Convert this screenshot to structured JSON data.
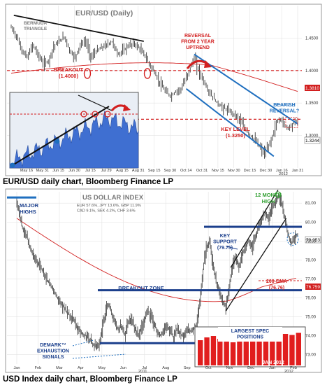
{
  "captions": {
    "top": "EUR/USD daily chart, Bloomberg Finance LP",
    "bottom": "USD Index daily chart, Bloomberg Finance LP"
  },
  "colors": {
    "red": "#d21f1f",
    "blue": "#1f6fbf",
    "green": "#2f9e2f",
    "navy": "#1b3f8c",
    "bar": "#3a3a3a",
    "grid": "#e3e3e3",
    "axis": "#555555"
  },
  "chart_data": [
    {
      "type": "candlestick",
      "title": "EUR/USD (Daily)",
      "ylim": [
        1.25,
        1.5
      ],
      "y_ticks": [
        "1.4500",
        "1.4000",
        "1.3500",
        "1.3000"
      ],
      "x_ticks": [
        "May 16",
        "May 31",
        "Jun 15",
        "Jun 30",
        "Jul 15",
        "Jul 29",
        "Aug 15",
        "Aug 31",
        "Sep 15",
        "Sep 30",
        "Oct 14",
        "Oct 31",
        "Nov 15",
        "Nov 30",
        "Dec 15",
        "Dec 30",
        "Jan 16",
        "Jan 31"
      ],
      "year_label": "2012",
      "levels": [
        {
          "name": "breakout",
          "value": 1.4
        },
        {
          "name": "key-level",
          "value": 1.325
        }
      ],
      "last_price_tags": [
        "1.3244",
        "1.3810"
      ],
      "annotations": [
        {
          "key": "bermuda",
          "text": "BERMUDA TRIANGLE"
        },
        {
          "key": "reversal",
          "text": "REVERSAL FROM 2 YEAR UPTREND"
        },
        {
          "key": "breakout",
          "text": "BREAKOUT (1.4000)"
        },
        {
          "key": "bearish",
          "text": "BEARISH REVERSAL?"
        },
        {
          "key": "keylevel",
          "text": "KEY LEVEL (1.3250)"
        }
      ],
      "close_path": [
        [
          0,
          1.466
        ],
        [
          4,
          1.452
        ],
        [
          8,
          1.43
        ],
        [
          12,
          1.42
        ],
        [
          16,
          1.44
        ],
        [
          20,
          1.425
        ],
        [
          24,
          1.41
        ],
        [
          28,
          1.415
        ],
        [
          32,
          1.438
        ],
        [
          36,
          1.445
        ],
        [
          40,
          1.452
        ],
        [
          44,
          1.43
        ],
        [
          48,
          1.42
        ],
        [
          52,
          1.44
        ],
        [
          56,
          1.445
        ],
        [
          60,
          1.42
        ],
        [
          64,
          1.43
        ],
        [
          68,
          1.435
        ],
        [
          72,
          1.44
        ],
        [
          76,
          1.445
        ],
        [
          80,
          1.425
        ],
        [
          84,
          1.43
        ],
        [
          88,
          1.438
        ],
        [
          92,
          1.442
        ],
        [
          96,
          1.435
        ],
        [
          100,
          1.425
        ],
        [
          104,
          1.41
        ],
        [
          108,
          1.396
        ],
        [
          112,
          1.38
        ],
        [
          116,
          1.368
        ],
        [
          120,
          1.36
        ],
        [
          124,
          1.368
        ],
        [
          128,
          1.372
        ],
        [
          132,
          1.39
        ],
        [
          136,
          1.41
        ],
        [
          138,
          1.42
        ],
        [
          140,
          1.405
        ],
        [
          144,
          1.388
        ],
        [
          148,
          1.37
        ],
        [
          152,
          1.358
        ],
        [
          156,
          1.348
        ],
        [
          160,
          1.342
        ],
        [
          164,
          1.338
        ],
        [
          168,
          1.333
        ],
        [
          172,
          1.325
        ],
        [
          176,
          1.31
        ],
        [
          180,
          1.3
        ],
        [
          184,
          1.292
        ],
        [
          188,
          1.28
        ],
        [
          191,
          1.272
        ],
        [
          194,
          1.284
        ],
        [
          197,
          1.3
        ],
        [
          200,
          1.32
        ],
        [
          203,
          1.326
        ],
        [
          206,
          1.315
        ],
        [
          209,
          1.312
        ],
        [
          212,
          1.318
        ],
        [
          216,
          1.324
        ]
      ],
      "inset": {
        "description_free": true
      }
    },
    {
      "type": "candlestick",
      "title": "US DOLLAR INDEX",
      "ylim": [
        72.5,
        81.6
      ],
      "y_ticks": [
        "81.00",
        "80.00",
        "79.00",
        "78.00",
        "77.00",
        "76.00",
        "75.00",
        "74.00",
        "73.00"
      ],
      "x_ticks": [
        "Jan",
        "Feb",
        "Mar",
        "Apr",
        "May",
        "Jun",
        "Jul",
        "Aug",
        "Sep",
        "Oct",
        "Nov",
        "Dec",
        "Jan",
        "Feb"
      ],
      "year_labels": [
        "2011",
        "2012"
      ],
      "weights_lines": [
        "EUR 57.6%, JPY 13.6%, GBP 11.9%",
        "CAD 9.1%, SEK 4.2%, CHF 3.6%"
      ],
      "last_price_tags": [
        "79.353",
        "76.759"
      ],
      "levels": [
        {
          "name": "key-support",
          "value": 79.75
        },
        {
          "name": "breakout-zone",
          "value": 76.4
        },
        {
          "name": "demark-level",
          "value": 73.6
        },
        {
          "name": "major-highs",
          "value": 81.3
        }
      ],
      "moving_average": {
        "name": "200-DMA",
        "value": 76.76
      },
      "annotations": [
        {
          "key": "majorhighs",
          "text": "MAJOR HIGHS"
        },
        {
          "key": "keysupport",
          "text": "KEY SUPPORT (79.75)"
        },
        {
          "key": "twelvemonth",
          "text": "12 MONTH HIGH"
        },
        {
          "key": "dma",
          "text": "200-DMA (76.76)"
        },
        {
          "key": "breakoutzone",
          "text": "BREAKOUT ZONE"
        },
        {
          "key": "demark",
          "text": "DEMARK™ EXHAUSTION SIGNALS"
        },
        {
          "key": "spec",
          "text": "LARGEST SPEC POSITIONS"
        }
      ],
      "close_path": [
        [
          0,
          81.1
        ],
        [
          6,
          79.8
        ],
        [
          12,
          79.2
        ],
        [
          18,
          78.4
        ],
        [
          24,
          77.9
        ],
        [
          30,
          77.5
        ],
        [
          36,
          77.0
        ],
        [
          42,
          76.6
        ],
        [
          48,
          76.1
        ],
        [
          54,
          75.7
        ],
        [
          60,
          75.3
        ],
        [
          66,
          75.0
        ],
        [
          72,
          74.6
        ],
        [
          78,
          74.2
        ],
        [
          84,
          74.0
        ],
        [
          90,
          73.7
        ],
        [
          96,
          73.4
        ],
        [
          100,
          73.5
        ],
        [
          104,
          74.3
        ],
        [
          108,
          75.2
        ],
        [
          112,
          75.7
        ],
        [
          116,
          75.2
        ],
        [
          120,
          74.6
        ],
        [
          124,
          74.3
        ],
        [
          128,
          74.5
        ],
        [
          132,
          74.0
        ],
        [
          136,
          74.7
        ],
        [
          140,
          74.9
        ],
        [
          144,
          74.4
        ],
        [
          148,
          74.0
        ],
        [
          152,
          74.3
        ],
        [
          156,
          74.8
        ],
        [
          160,
          75.4
        ],
        [
          164,
          75.0
        ],
        [
          168,
          74.6
        ],
        [
          172,
          74.2
        ],
        [
          176,
          74.0
        ],
        [
          180,
          74.3
        ],
        [
          184,
          74.5
        ],
        [
          188,
          74.2
        ],
        [
          192,
          73.9
        ],
        [
          196,
          74.4
        ],
        [
          200,
          74.1
        ],
        [
          204,
          74.0
        ],
        [
          208,
          74.3
        ],
        [
          212,
          74.2
        ],
        [
          216,
          74.3
        ],
        [
          220,
          74.6
        ],
        [
          224,
          75.8
        ],
        [
          228,
          77.5
        ],
        [
          232,
          78.7
        ],
        [
          236,
          79.0
        ],
        [
          240,
          77.8
        ],
        [
          244,
          76.8
        ],
        [
          248,
          76.4
        ],
        [
          252,
          75.8
        ],
        [
          256,
          75.5
        ],
        [
          260,
          76.6
        ],
        [
          264,
          77.7
        ],
        [
          268,
          78.2
        ],
        [
          272,
          77.6
        ],
        [
          276,
          78.3
        ],
        [
          280,
          78.7
        ],
        [
          284,
          79.0
        ],
        [
          288,
          78.6
        ],
        [
          292,
          79.3
        ],
        [
          296,
          79.7
        ],
        [
          300,
          80.2
        ],
        [
          304,
          80.5
        ],
        [
          308,
          80.2
        ],
        [
          312,
          80.7
        ],
        [
          316,
          81.0
        ],
        [
          320,
          81.4
        ],
        [
          324,
          81.0
        ],
        [
          328,
          80.2
        ],
        [
          332,
          79.3
        ],
        [
          336,
          78.9
        ],
        [
          340,
          79.2
        ],
        [
          344,
          79.35
        ]
      ],
      "inset": {
        "type": "bar",
        "label": "JAN 2012",
        "bar_count": 16
      }
    }
  ]
}
